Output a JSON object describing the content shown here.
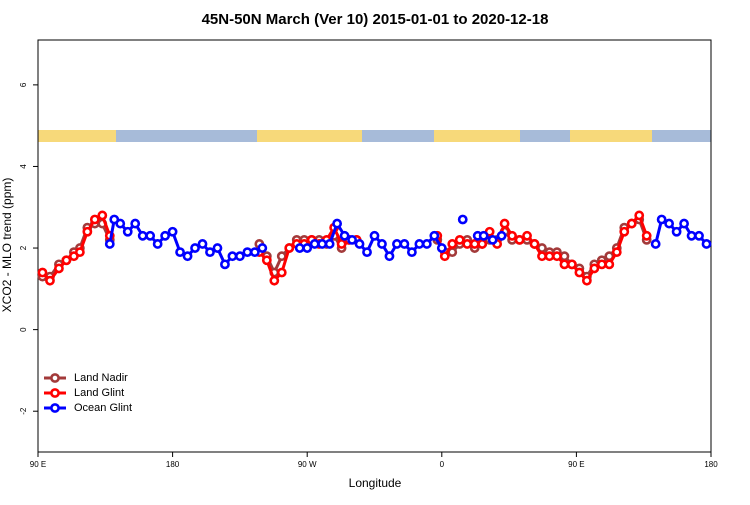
{
  "chart_data": {
    "type": "line",
    "title": "45N-50N March (Ver 10)   2015-01-01 to 2020-12-18",
    "x_label": "Longitude",
    "y_label": "XCO2 - MLO trend (ppm)",
    "xlim": [
      90,
      540
    ],
    "xticks": [
      {
        "value": 90,
        "label": "90 E"
      },
      180,
      {
        "value": 270,
        "label": "90 W"
      },
      {
        "value": 360,
        "label": "0"
      },
      {
        "value": 450,
        "label": "90 E"
      },
      {
        "value": 540,
        "label": "180"
      }
    ],
    "ylim": [
      -3,
      7.1
    ],
    "yticks": [
      -2,
      0,
      2,
      4,
      6
    ],
    "legend": "bottom-left",
    "series": [
      {
        "name": "Land Nadir",
        "color": "#a33a3a",
        "x": [
          93,
          98,
          104,
          109,
          114,
          118,
          123,
          128,
          133,
          138,
          188,
          238,
          243,
          248,
          253,
          258,
          263,
          268,
          273,
          278,
          283,
          288,
          293,
          298,
          303,
          330,
          357,
          362,
          367,
          372,
          377,
          382,
          387,
          392,
          397,
          402,
          407,
          412,
          417,
          422,
          427,
          432,
          437,
          442,
          447,
          452,
          457,
          462,
          467,
          472,
          477,
          482,
          487,
          492,
          497
        ],
        "values": [
          1.3,
          1.3,
          1.6,
          1.7,
          1.9,
          2.0,
          2.5,
          2.6,
          2.6,
          2.2,
          null,
          2.1,
          1.8,
          1.4,
          1.8,
          2.0,
          2.2,
          2.2,
          2.2,
          2.2,
          2.1,
          2.3,
          2.0,
          2.2,
          2.2,
          null,
          2.2,
          1.9,
          1.9,
          2.1,
          2.2,
          2.0,
          2.1,
          2.2,
          2.2,
          2.4,
          2.2,
          2.2,
          2.2,
          2.1,
          2.0,
          1.9,
          1.9,
          1.8,
          1.6,
          1.5,
          1.3,
          1.6,
          1.7,
          1.8,
          2.0,
          2.5,
          2.6,
          2.7,
          2.2
        ]
      },
      {
        "name": "Land Glint",
        "color": "#ff0000",
        "x": [
          93,
          98,
          104,
          109,
          114,
          118,
          123,
          128,
          133,
          138,
          188,
          238,
          243,
          248,
          253,
          258,
          263,
          268,
          273,
          278,
          283,
          288,
          293,
          298,
          303,
          330,
          357,
          362,
          367,
          372,
          377,
          382,
          387,
          392,
          397,
          402,
          407,
          412,
          417,
          422,
          427,
          432,
          437,
          442,
          447,
          452,
          457,
          462,
          467,
          472,
          477,
          482,
          487,
          492,
          497
        ],
        "values": [
          1.4,
          1.2,
          1.5,
          1.7,
          1.8,
          1.9,
          2.4,
          2.7,
          2.8,
          2.3,
          null,
          1.9,
          1.7,
          1.2,
          1.4,
          2.0,
          2.1,
          2.1,
          2.2,
          2.1,
          2.2,
          2.5,
          2.1,
          2.2,
          2.2,
          null,
          2.3,
          1.8,
          2.1,
          2.2,
          2.1,
          2.1,
          2.1,
          2.4,
          2.1,
          2.6,
          2.3,
          2.2,
          2.3,
          2.1,
          1.8,
          1.8,
          1.8,
          1.6,
          1.6,
          1.4,
          1.2,
          1.5,
          1.6,
          1.6,
          1.9,
          2.4,
          2.6,
          2.8,
          2.3
        ]
      },
      {
        "name": "Ocean Glint",
        "color": "#0000ff",
        "x": [
          138,
          141,
          145,
          150,
          155,
          160,
          165,
          170,
          175,
          180,
          185,
          190,
          195,
          200,
          205,
          210,
          215,
          220,
          225,
          230,
          235,
          240,
          252,
          265,
          270,
          275,
          280,
          285,
          290,
          295,
          300,
          305,
          310,
          315,
          320,
          325,
          330,
          335,
          340,
          345,
          350,
          355,
          360,
          367,
          374,
          379,
          384,
          388,
          394,
          400,
          450,
          503,
          507,
          512,
          517,
          522,
          527,
          532,
          537
        ],
        "values": [
          2.1,
          2.7,
          2.6,
          2.4,
          2.6,
          2.3,
          2.3,
          2.1,
          2.3,
          2.4,
          1.9,
          1.8,
          2.0,
          2.1,
          1.9,
          2.0,
          1.6,
          1.8,
          1.8,
          1.9,
          1.9,
          2.0,
          null,
          2.0,
          2.0,
          2.1,
          2.1,
          2.1,
          2.6,
          2.3,
          2.2,
          2.1,
          1.9,
          2.3,
          2.1,
          1.8,
          2.1,
          2.1,
          1.9,
          2.1,
          2.1,
          2.3,
          2.0,
          null,
          2.7,
          null,
          2.3,
          2.3,
          2.2,
          2.3,
          null,
          2.1,
          2.7,
          2.6,
          2.4,
          2.6,
          2.3,
          2.3,
          2.1
        ]
      }
    ]
  }
}
